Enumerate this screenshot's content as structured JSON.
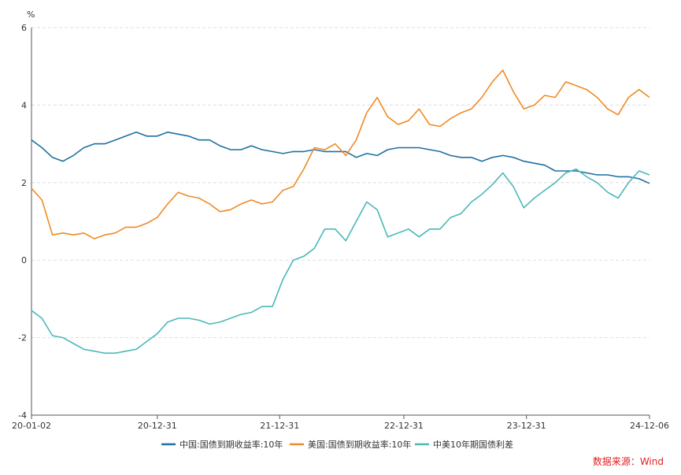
{
  "chart_data": {
    "type": "line",
    "y_unit": "%",
    "ylim": [
      -4,
      6
    ],
    "yticks": [
      "6",
      "4",
      "2",
      "0",
      "-2",
      "-4"
    ],
    "x_tick_labels": [
      "20-01-02",
      "20-12-31",
      "21-12-31",
      "22-12-31",
      "23-12-31",
      "24-12-06"
    ],
    "grid": "horizontal dashed",
    "legend_position": "bottom",
    "source": "数据来源：Wind",
    "x": [
      "2020-01",
      "2020-02",
      "2020-03",
      "2020-04",
      "2020-05",
      "2020-06",
      "2020-07",
      "2020-08",
      "2020-09",
      "2020-10",
      "2020-11",
      "2020-12",
      "2021-01",
      "2021-02",
      "2021-03",
      "2021-04",
      "2021-05",
      "2021-06",
      "2021-07",
      "2021-08",
      "2021-09",
      "2021-10",
      "2021-11",
      "2021-12",
      "2022-01",
      "2022-02",
      "2022-03",
      "2022-04",
      "2022-05",
      "2022-06",
      "2022-07",
      "2022-08",
      "2022-09",
      "2022-10",
      "2022-11",
      "2022-12",
      "2023-01",
      "2023-02",
      "2023-03",
      "2023-04",
      "2023-05",
      "2023-06",
      "2023-07",
      "2023-08",
      "2023-09",
      "2023-10",
      "2023-11",
      "2023-12",
      "2024-01",
      "2024-02",
      "2024-03",
      "2024-04",
      "2024-05",
      "2024-06",
      "2024-07",
      "2024-08",
      "2024-09",
      "2024-10",
      "2024-11",
      "2024-12"
    ],
    "series": [
      {
        "name": "中国:国债到期收益率:10年",
        "color": "#1f6fa0",
        "values": [
          3.1,
          2.9,
          2.65,
          2.55,
          2.7,
          2.9,
          3.0,
          3.0,
          3.1,
          3.2,
          3.3,
          3.2,
          3.2,
          3.3,
          3.25,
          3.2,
          3.1,
          3.1,
          2.95,
          2.85,
          2.85,
          2.95,
          2.85,
          2.8,
          2.75,
          2.8,
          2.8,
          2.85,
          2.8,
          2.8,
          2.8,
          2.65,
          2.75,
          2.7,
          2.85,
          2.9,
          2.9,
          2.9,
          2.85,
          2.8,
          2.7,
          2.65,
          2.65,
          2.55,
          2.65,
          2.7,
          2.65,
          2.55,
          2.5,
          2.45,
          2.3,
          2.3,
          2.3,
          2.25,
          2.2,
          2.2,
          2.15,
          2.15,
          2.1,
          1.98
        ]
      },
      {
        "name": "美国:国债到期收益率:10年",
        "color": "#f08a24",
        "values": [
          1.85,
          1.55,
          0.65,
          0.7,
          0.65,
          0.7,
          0.55,
          0.65,
          0.7,
          0.85,
          0.85,
          0.95,
          1.1,
          1.45,
          1.75,
          1.65,
          1.6,
          1.45,
          1.25,
          1.3,
          1.45,
          1.55,
          1.45,
          1.5,
          1.8,
          1.9,
          2.35,
          2.9,
          2.85,
          3.0,
          2.7,
          3.1,
          3.8,
          4.2,
          3.7,
          3.5,
          3.6,
          3.9,
          3.5,
          3.45,
          3.65,
          3.8,
          3.9,
          4.2,
          4.6,
          4.9,
          4.35,
          3.9,
          4.0,
          4.25,
          4.2,
          4.6,
          4.5,
          4.4,
          4.2,
          3.9,
          3.75,
          4.2,
          4.4,
          4.2
        ]
      },
      {
        "name": "中美10年期国债利差",
        "color": "#4bb8b8",
        "values": [
          -1.3,
          -1.5,
          -1.95,
          -2.0,
          -2.15,
          -2.3,
          -2.35,
          -2.4,
          -2.4,
          -2.35,
          -2.3,
          -2.1,
          -1.9,
          -1.6,
          -1.5,
          -1.5,
          -1.55,
          -1.65,
          -1.6,
          -1.5,
          -1.4,
          -1.35,
          -1.2,
          -1.2,
          -0.5,
          0.0,
          0.1,
          0.3,
          0.8,
          0.8,
          0.5,
          1.0,
          1.5,
          1.3,
          0.6,
          0.7,
          0.8,
          0.6,
          0.8,
          0.8,
          1.1,
          1.2,
          1.5,
          1.7,
          1.95,
          2.25,
          1.9,
          1.35,
          1.6,
          1.8,
          2.0,
          2.25,
          2.35,
          2.15,
          2.0,
          1.75,
          1.6,
          2.0,
          2.3,
          2.2
        ]
      }
    ]
  }
}
